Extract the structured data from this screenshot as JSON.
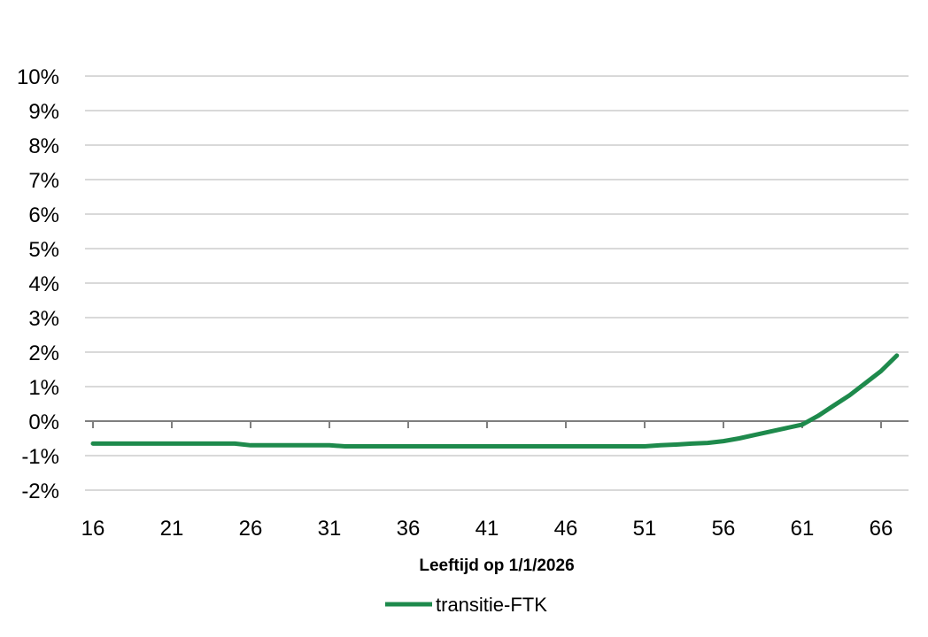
{
  "chart_data": {
    "type": "line",
    "title": "",
    "xlabel": "Leeftijd op 1/1/2026",
    "ylabel": "",
    "x_ticks": [
      16,
      21,
      26,
      31,
      36,
      41,
      46,
      51,
      56,
      61,
      66
    ],
    "y_ticks": [
      "-2%",
      "-1%",
      "0%",
      "1%",
      "2%",
      "3%",
      "4%",
      "5%",
      "6%",
      "7%",
      "8%",
      "9%",
      "10%"
    ],
    "xlim": [
      16,
      67
    ],
    "ylim": [
      -2,
      10
    ],
    "y_unit": "%",
    "grid": "horizontal",
    "legend_position": "bottom",
    "series": [
      {
        "name": "transitie-FTK",
        "color": "#1e8a4c",
        "x": [
          16,
          17,
          18,
          19,
          20,
          21,
          22,
          23,
          24,
          25,
          26,
          27,
          28,
          29,
          30,
          31,
          32,
          33,
          34,
          35,
          36,
          37,
          38,
          39,
          40,
          41,
          42,
          43,
          44,
          45,
          46,
          47,
          48,
          49,
          50,
          51,
          52,
          53,
          54,
          55,
          56,
          57,
          58,
          59,
          60,
          61,
          62,
          63,
          64,
          65,
          66,
          67
        ],
        "y": [
          -0.65,
          -0.65,
          -0.65,
          -0.65,
          -0.65,
          -0.65,
          -0.65,
          -0.65,
          -0.65,
          -0.65,
          -0.7,
          -0.7,
          -0.7,
          -0.7,
          -0.7,
          -0.7,
          -0.73,
          -0.73,
          -0.73,
          -0.73,
          -0.73,
          -0.73,
          -0.73,
          -0.73,
          -0.73,
          -0.73,
          -0.73,
          -0.73,
          -0.73,
          -0.73,
          -0.73,
          -0.73,
          -0.73,
          -0.73,
          -0.73,
          -0.73,
          -0.7,
          -0.68,
          -0.65,
          -0.63,
          -0.58,
          -0.5,
          -0.4,
          -0.3,
          -0.2,
          -0.1,
          0.15,
          0.45,
          0.75,
          1.1,
          1.45,
          1.9
        ]
      }
    ]
  }
}
